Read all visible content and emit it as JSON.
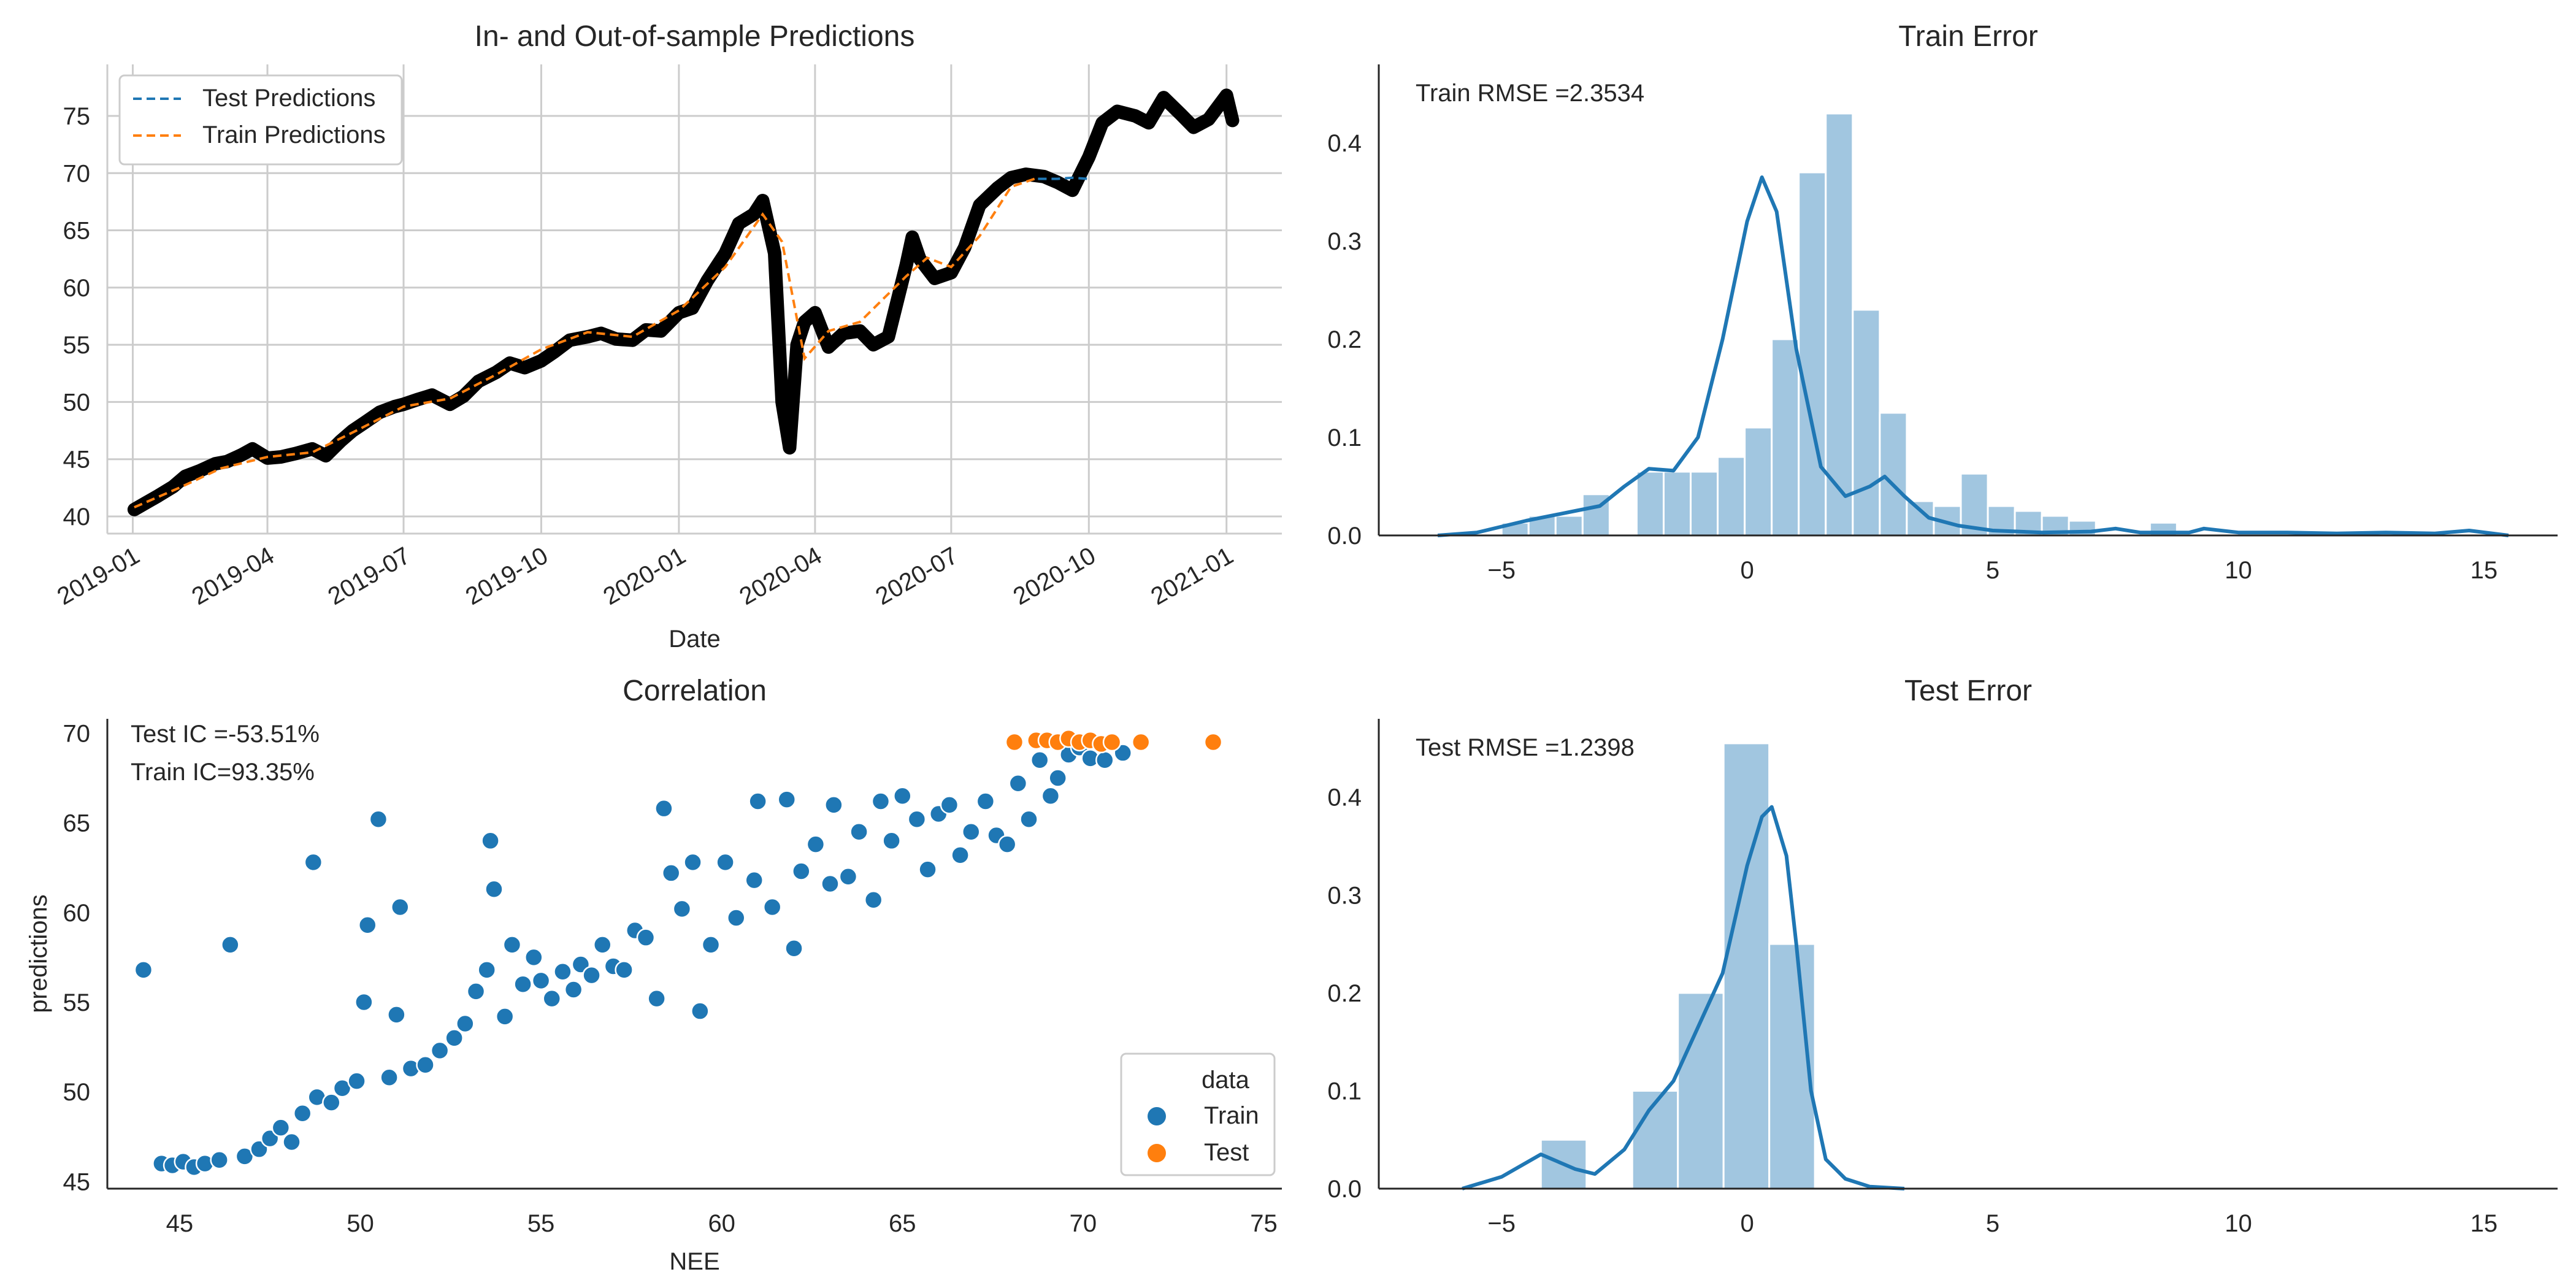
{
  "chart_data": [
    {
      "type": "line",
      "title": "In- and Out-of-sample Predictions",
      "xlabel": "Date",
      "ylabel": "",
      "xlim": [
        "2018-12-15",
        "2021-02-07"
      ],
      "ylim": [
        38.5,
        79.5
      ],
      "grid": true,
      "legend_position": "top-left",
      "x_ticks": [
        "2019-01-01",
        "2019-04-01",
        "2019-07-01",
        "2019-10-01",
        "2020-01-01",
        "2020-04-01",
        "2020-07-01",
        "2020-10-01",
        "2021-01-01"
      ],
      "x_tick_labels": [
        "2019-01",
        "2019-04",
        "2019-07",
        "2019-10",
        "2020-01",
        "2020-04",
        "2020-07",
        "2020-10",
        "2021-01"
      ],
      "y_ticks": [
        40,
        45,
        50,
        55,
        60,
        65,
        70,
        75
      ],
      "legend": [
        "Test Predictions",
        "Train Predictions"
      ],
      "colors": {
        "actual": "#000000",
        "train": "#ff7f0e",
        "test": "#1f77b4"
      },
      "series": [
        {
          "role": "actual",
          "dates": [
            "2019-01-02",
            "2019-01-10",
            "2019-01-18",
            "2019-01-28",
            "2019-02-05",
            "2019-02-15",
            "2019-02-25",
            "2019-03-05",
            "2019-03-15",
            "2019-03-22",
            "2019-04-01",
            "2019-04-10",
            "2019-04-20",
            "2019-05-01",
            "2019-05-10",
            "2019-05-20",
            "2019-05-28",
            "2019-06-05",
            "2019-06-15",
            "2019-06-25",
            "2019-07-01",
            "2019-07-10",
            "2019-07-20",
            "2019-08-01",
            "2019-08-10",
            "2019-08-20",
            "2019-09-01",
            "2019-09-10",
            "2019-09-20",
            "2019-10-01",
            "2019-10-10",
            "2019-10-20",
            "2019-11-01",
            "2019-11-10",
            "2019-11-20",
            "2019-12-01",
            "2019-12-10",
            "2019-12-20",
            "2020-01-01",
            "2020-01-10",
            "2020-01-20",
            "2020-02-01",
            "2020-02-10",
            "2020-02-20",
            "2020-02-26",
            "2020-03-05",
            "2020-03-10",
            "2020-03-15",
            "2020-03-20",
            "2020-03-25",
            "2020-04-01",
            "2020-04-10",
            "2020-04-20",
            "2020-05-01",
            "2020-05-10",
            "2020-05-20",
            "2020-06-01",
            "2020-06-05",
            "2020-06-10",
            "2020-06-20",
            "2020-07-01",
            "2020-07-10",
            "2020-07-20",
            "2020-08-01",
            "2020-08-10",
            "2020-08-20",
            "2020-09-01",
            "2020-09-10",
            "2020-09-20",
            "2020-10-01",
            "2020-10-10",
            "2020-10-20",
            "2020-11-01",
            "2020-11-10",
            "2020-11-20",
            "2020-12-01",
            "2020-12-10",
            "2020-12-20",
            "2021-01-01",
            "2021-01-05"
          ],
          "values": [
            40.6,
            41.2,
            41.8,
            42.6,
            43.5,
            44.0,
            44.6,
            44.8,
            45.4,
            45.9,
            45.1,
            45.2,
            45.5,
            45.9,
            45.3,
            46.6,
            47.5,
            48.2,
            49.1,
            49.6,
            49.8,
            50.2,
            50.6,
            49.8,
            50.5,
            51.8,
            52.6,
            53.4,
            53.0,
            53.6,
            54.4,
            55.4,
            55.7,
            56.0,
            55.5,
            55.4,
            56.3,
            56.2,
            57.8,
            58.2,
            60.6,
            63.0,
            65.6,
            66.4,
            67.6,
            63.0,
            50.0,
            46.0,
            55.0,
            57.0,
            57.8,
            54.8,
            56.0,
            56.2,
            55.0,
            55.7,
            62.0,
            64.4,
            62.5,
            60.8,
            61.3,
            63.5,
            67.2,
            68.7,
            69.6,
            69.9,
            69.7,
            69.2,
            68.5,
            71.4,
            74.4,
            75.4,
            75.0,
            74.4,
            76.6,
            75.2,
            74.0,
            74.7,
            76.8,
            74.6
          ]
        },
        {
          "role": "train",
          "name": "Train Predictions",
          "dates": [
            "2019-01-02",
            "2019-02-01",
            "2019-03-01",
            "2019-04-01",
            "2019-05-01",
            "2019-06-01",
            "2019-07-01",
            "2019-08-01",
            "2019-09-01",
            "2019-10-01",
            "2019-11-01",
            "2019-12-01",
            "2020-01-01",
            "2020-02-01",
            "2020-02-26",
            "2020-03-10",
            "2020-03-25",
            "2020-04-10",
            "2020-05-01",
            "2020-06-01",
            "2020-06-15",
            "2020-07-01",
            "2020-07-20",
            "2020-08-10",
            "2020-08-28"
          ],
          "values": [
            40.8,
            42.5,
            44.2,
            45.2,
            45.6,
            47.6,
            49.6,
            50.3,
            52.4,
            54.6,
            56.1,
            55.7,
            58.0,
            61.8,
            66.4,
            64.0,
            53.8,
            56.2,
            57.0,
            61.0,
            62.6,
            61.8,
            64.5,
            68.8,
            69.6
          ]
        },
        {
          "role": "test",
          "name": "Test Predictions",
          "dates": [
            "2020-08-28",
            "2020-09-10",
            "2020-09-20",
            "2020-09-30"
          ],
          "values": [
            69.5,
            69.5,
            69.6,
            69.5
          ]
        }
      ]
    },
    {
      "type": "histogram",
      "title": "Train Error",
      "annotation": "Train RMSE =2.3534",
      "xlim": [
        -7.5,
        16.5
      ],
      "ylim": [
        0,
        0.48
      ],
      "x_ticks": [
        -5,
        0,
        5,
        10,
        15
      ],
      "y_ticks": [
        0.0,
        0.1,
        0.2,
        0.3,
        0.4
      ],
      "color": "#1f77b4",
      "bin_start": -5.0,
      "bin_width": 0.55,
      "values": [
        0.013,
        0.02,
        0.02,
        0.042,
        0,
        0.065,
        0.065,
        0.065,
        0.08,
        0.11,
        0.2,
        0.37,
        0.43,
        0.23,
        0.125,
        0.035,
        0.03,
        0.063,
        0.03,
        0.025,
        0.02,
        0.015,
        0,
        0,
        0.013,
        0,
        0,
        0,
        0,
        0,
        0,
        0,
        0,
        0,
        0,
        0,
        0,
        0,
        0,
        0,
        0,
        0,
        0,
        0,
        0,
        0,
        0.012,
        0
      ],
      "kde": {
        "x": [
          -6.3,
          -5.5,
          -4.5,
          -3.5,
          -3.0,
          -2.5,
          -2.0,
          -1.5,
          -1.0,
          -0.5,
          0.0,
          0.3,
          0.6,
          1.0,
          1.5,
          2.0,
          2.5,
          2.8,
          3.2,
          3.7,
          4.3,
          5.0,
          6.0,
          7.0,
          7.5,
          8.0,
          9.0,
          9.3,
          10.0,
          11.0,
          12.0,
          13.0,
          14.0,
          14.7,
          15.5
        ],
        "y": [
          0,
          0.003,
          0.015,
          0.025,
          0.03,
          0.05,
          0.068,
          0.066,
          0.1,
          0.2,
          0.32,
          0.365,
          0.33,
          0.19,
          0.07,
          0.04,
          0.05,
          0.06,
          0.04,
          0.018,
          0.01,
          0.005,
          0.003,
          0.004,
          0.007,
          0.003,
          0.003,
          0.007,
          0.003,
          0.003,
          0.002,
          0.003,
          0.002,
          0.005,
          0
        ]
      }
    },
    {
      "type": "scatter",
      "title": "Correlation",
      "xlabel": "NEE",
      "ylabel": "predictions",
      "xlim": [
        43.0,
        75.5
      ],
      "ylim": [
        44.6,
        70.8
      ],
      "x_ticks": [
        45,
        50,
        55,
        60,
        65,
        70,
        75
      ],
      "y_ticks": [
        45,
        50,
        55,
        60,
        65,
        70
      ],
      "annotations": [
        "Test IC =-53.51%",
        "Train IC=93.35%"
      ],
      "legend_title": "data",
      "legend_position": "bottom-right",
      "series": [
        {
          "name": "Train",
          "color": "#1f77b4",
          "points": [
            [
              44,
              56.8
            ],
            [
              44.5,
              46
            ],
            [
              44.8,
              45.9
            ],
            [
              45.1,
              46.1
            ],
            [
              45.4,
              45.8
            ],
            [
              45.7,
              46
            ],
            [
              46.1,
              46.2
            ],
            [
              46.4,
              58.2
            ],
            [
              46.8,
              46.4
            ],
            [
              47.2,
              46.8
            ],
            [
              47.5,
              47.4
            ],
            [
              47.8,
              48
            ],
            [
              48.1,
              47.2
            ],
            [
              48.4,
              48.8
            ],
            [
              48.8,
              49.7
            ],
            [
              48.7,
              62.8
            ],
            [
              49.2,
              49.4
            ],
            [
              49.5,
              50.2
            ],
            [
              49.9,
              50.6
            ],
            [
              50.1,
              55
            ],
            [
              50.2,
              59.3
            ],
            [
              50.5,
              65.2
            ],
            [
              50.8,
              50.8
            ],
            [
              51,
              54.3
            ],
            [
              51.1,
              60.3
            ],
            [
              51.4,
              51.3
            ],
            [
              51.8,
              51.5
            ],
            [
              52.2,
              52.3
            ],
            [
              52.6,
              53
            ],
            [
              52.9,
              53.8
            ],
            [
              53.2,
              55.6
            ],
            [
              53.5,
              56.8
            ],
            [
              53.6,
              64
            ],
            [
              53.7,
              61.3
            ],
            [
              54,
              54.2
            ],
            [
              54.2,
              58.2
            ],
            [
              54.5,
              56
            ],
            [
              54.8,
              57.5
            ],
            [
              55,
              56.2
            ],
            [
              55.3,
              55.2
            ],
            [
              55.6,
              56.7
            ],
            [
              55.9,
              55.7
            ],
            [
              56.1,
              57.1
            ],
            [
              56.4,
              56.5
            ],
            [
              56.7,
              58.2
            ],
            [
              57,
              57
            ],
            [
              57.3,
              56.8
            ],
            [
              57.6,
              59
            ],
            [
              57.9,
              58.6
            ],
            [
              58.2,
              55.2
            ],
            [
              58.4,
              65.8
            ],
            [
              58.6,
              62.2
            ],
            [
              58.9,
              60.2
            ],
            [
              59.2,
              62.8
            ],
            [
              59.4,
              54.5
            ],
            [
              59.7,
              58.2
            ],
            [
              60.1,
              62.8
            ],
            [
              60.4,
              59.7
            ],
            [
              60.9,
              61.8
            ],
            [
              61,
              66.2
            ],
            [
              61.4,
              60.3
            ],
            [
              61.8,
              66.3
            ],
            [
              62,
              58
            ],
            [
              62.2,
              62.3
            ],
            [
              62.6,
              63.8
            ],
            [
              63,
              61.6
            ],
            [
              63.1,
              66
            ],
            [
              63.5,
              62
            ],
            [
              63.8,
              64.5
            ],
            [
              64.2,
              60.7
            ],
            [
              64.4,
              66.2
            ],
            [
              64.7,
              64
            ],
            [
              65,
              66.5
            ],
            [
              65.4,
              65.2
            ],
            [
              65.7,
              62.4
            ],
            [
              66,
              65.5
            ],
            [
              66.3,
              66
            ],
            [
              66.6,
              63.2
            ],
            [
              66.9,
              64.5
            ],
            [
              67.3,
              66.2
            ],
            [
              67.6,
              64.3
            ],
            [
              67.9,
              63.8
            ],
            [
              68.2,
              67.2
            ],
            [
              68.5,
              65.2
            ],
            [
              68.8,
              68.5
            ],
            [
              69.1,
              66.5
            ],
            [
              69.3,
              67.5
            ],
            [
              69.6,
              68.8
            ],
            [
              69.9,
              69.2
            ],
            [
              70.2,
              68.6
            ],
            [
              70.6,
              68.5
            ],
            [
              71.1,
              68.9
            ]
          ]
        },
        {
          "name": "Test",
          "color": "#ff7f0e",
          "points": [
            [
              68.1,
              69.5
            ],
            [
              68.7,
              69.6
            ],
            [
              69,
              69.6
            ],
            [
              69.3,
              69.5
            ],
            [
              69.6,
              69.7
            ],
            [
              69.9,
              69.5
            ],
            [
              70.2,
              69.6
            ],
            [
              70.5,
              69.4
            ],
            [
              70.8,
              69.5
            ],
            [
              71.6,
              69.5
            ],
            [
              73.6,
              69.5
            ]
          ]
        }
      ],
      "legend": [
        "Train",
        "Test"
      ]
    },
    {
      "type": "histogram",
      "title": "Test Error",
      "annotation": "Test RMSE =1.2398",
      "xlim": [
        -7.5,
        16.5
      ],
      "ylim": [
        0,
        0.48
      ],
      "x_ticks": [
        -5,
        0,
        5,
        10,
        15
      ],
      "y_ticks": [
        0.0,
        0.1,
        0.2,
        0.3,
        0.4
      ],
      "color": "#1f77b4",
      "bin_start": -4.2,
      "bin_width": 0.93,
      "values": [
        0.05,
        0,
        0.1,
        0.2,
        0.455,
        0.25
      ],
      "kde": {
        "x": [
          -5.8,
          -5.0,
          -4.2,
          -3.5,
          -3.1,
          -2.5,
          -2.0,
          -1.5,
          -1.0,
          -0.5,
          0.0,
          0.3,
          0.5,
          0.8,
          1.0,
          1.3,
          1.6,
          2.0,
          2.5,
          3.2
        ],
        "y": [
          0,
          0.012,
          0.035,
          0.02,
          0.015,
          0.04,
          0.08,
          0.11,
          0.165,
          0.22,
          0.33,
          0.38,
          0.39,
          0.34,
          0.25,
          0.1,
          0.03,
          0.01,
          0.002,
          0
        ]
      }
    }
  ]
}
